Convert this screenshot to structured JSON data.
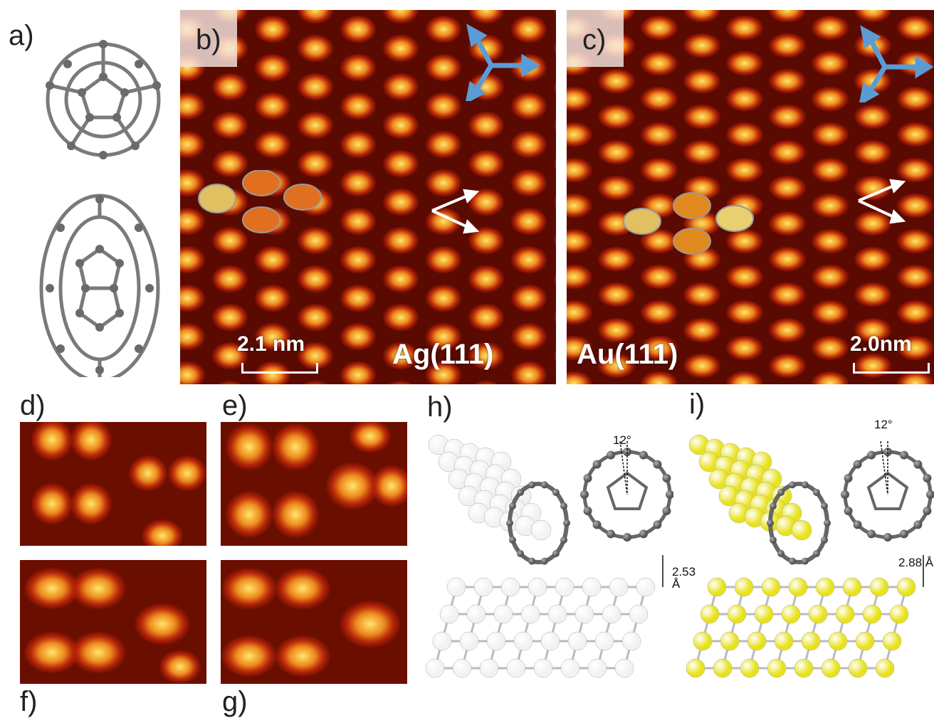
{
  "panels": {
    "a": {
      "letter": "a)"
    },
    "b": {
      "letter": "b)",
      "substrate": "Ag(111)",
      "scale": "2.1 nm"
    },
    "c": {
      "letter": "c)",
      "substrate": "Au(111)",
      "scale": "2.0nm"
    },
    "d": {
      "letter": "d)"
    },
    "e": {
      "letter": "e)"
    },
    "f": {
      "letter": "f)"
    },
    "g": {
      "letter": "g)"
    },
    "h": {
      "letter": "h)",
      "angle": "12°",
      "height": "2.53 Å",
      "substrate_color": "#f2f2f2"
    },
    "i": {
      "letter": "i)",
      "angle": "12°",
      "height": "2.88 Å",
      "substrate_color": "#e8e21a"
    }
  },
  "colors": {
    "stm_dark": "#2a0000",
    "stm_mid": "#c0280a",
    "stm_bright": "#ffe86a",
    "arrow_blue": "#5b9bd5",
    "carbon": "#707070"
  }
}
